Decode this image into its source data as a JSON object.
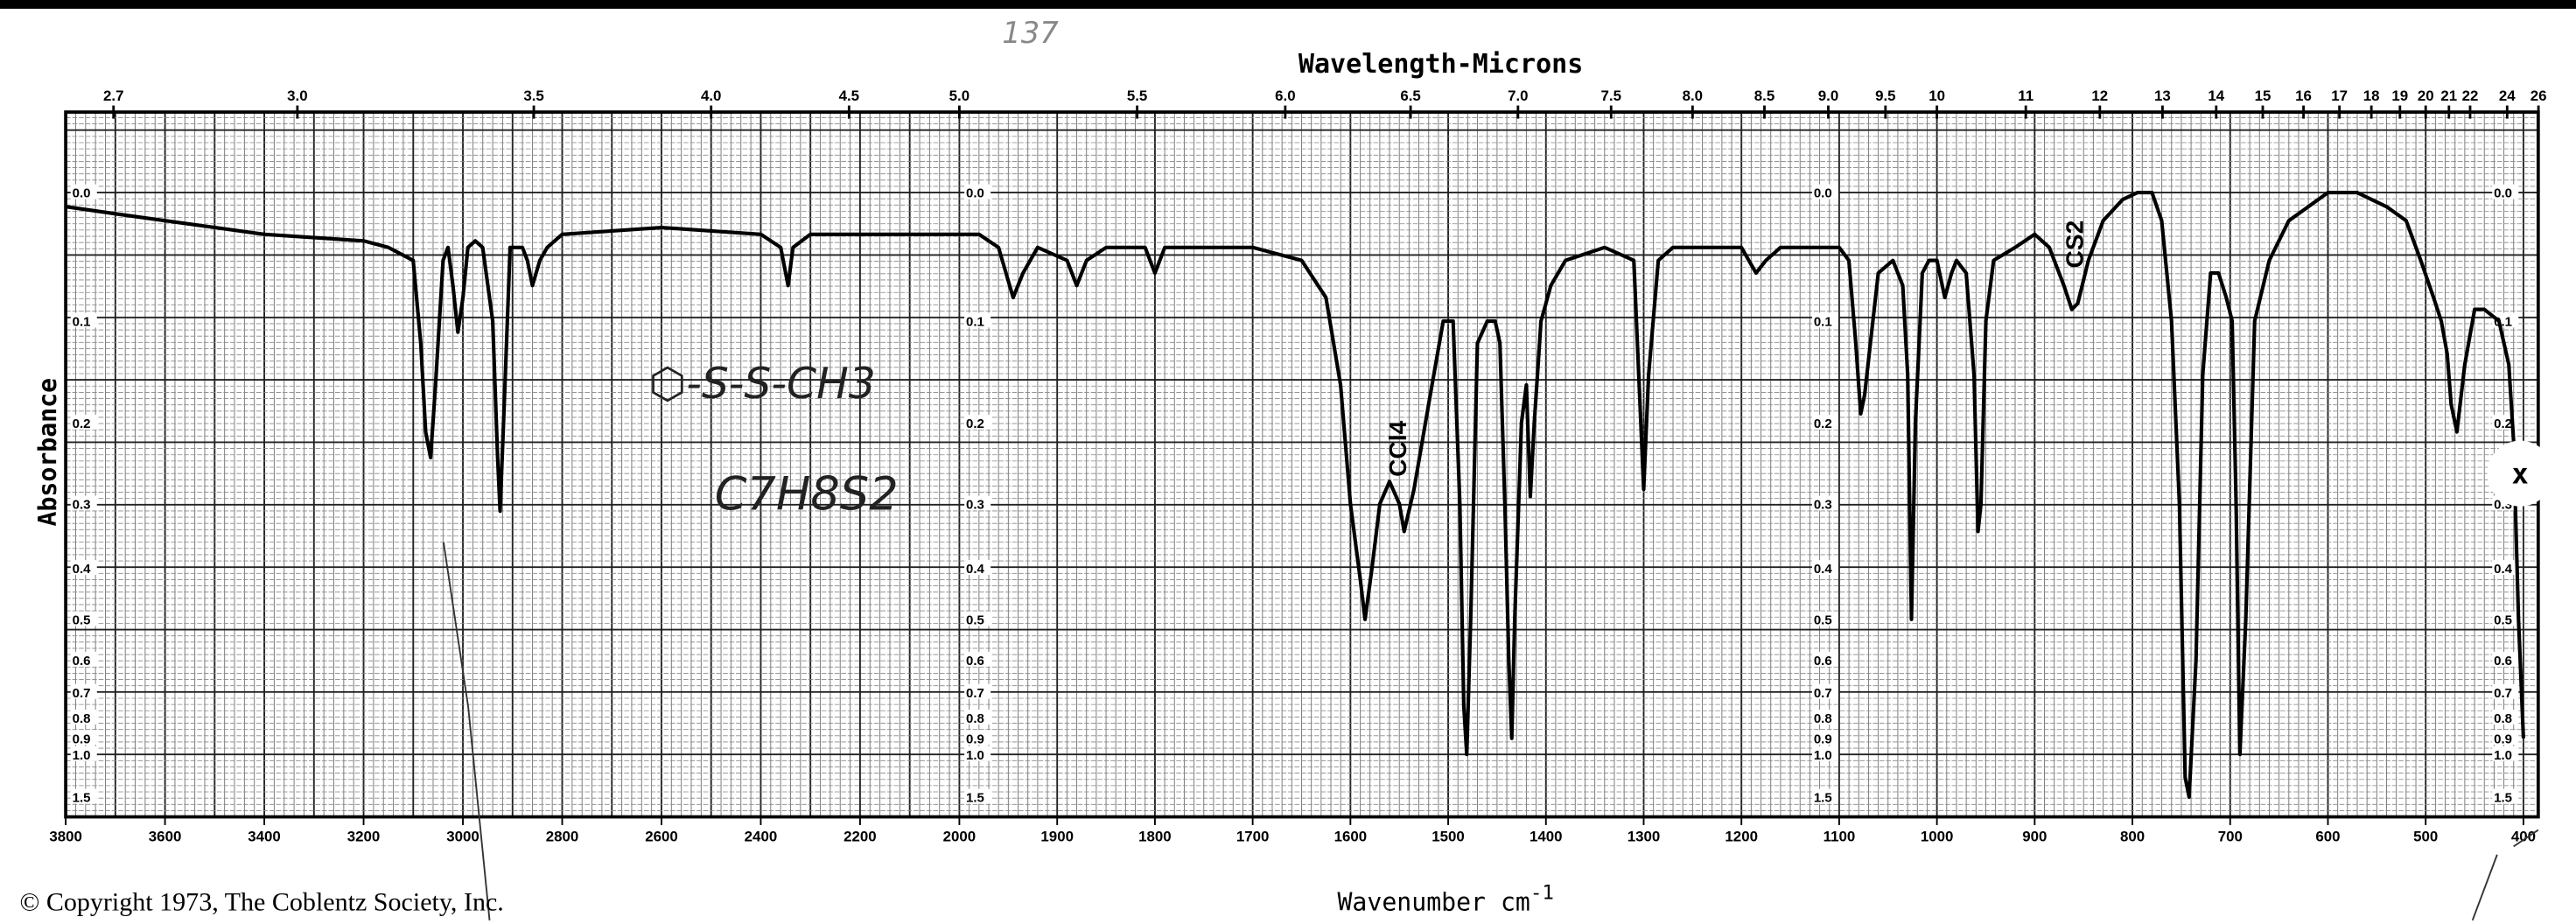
{
  "chart_data": {
    "type": "line",
    "title": "Wavelength-Microns",
    "xlabel": "Wavenumber cm",
    "xlabel_superscript": "-1",
    "ylabel": "Absorbance",
    "xlim": [
      3800,
      400
    ],
    "ylim": [
      0.0,
      1.5
    ],
    "y_scale": "log-transmittance (linear %T)",
    "grid": true,
    "x_ticks": [
      "3800",
      "3600",
      "3400",
      "3200",
      "3000",
      "2800",
      "2600",
      "2400",
      "2200",
      "2000",
      "1900",
      "1800",
      "1700",
      "1600",
      "1500",
      "1400",
      "1300",
      "1200",
      "1100",
      "1000",
      "900",
      "800",
      "700",
      "600",
      "500",
      "400"
    ],
    "top_ticks_microns": [
      "2.7",
      "3.0",
      "3.5",
      "4.0",
      "4.5",
      "5.0",
      "5.5",
      "6.0",
      "6.5",
      "7.0",
      "7.5",
      "8.0",
      "8.5",
      "9.0",
      "9.5",
      "10",
      "11",
      "12",
      "13",
      "14",
      "15",
      "16",
      "17",
      "18",
      "19",
      "20",
      "21",
      "22",
      "24",
      "26"
    ],
    "y_ticks": [
      "0.0",
      "0.1",
      "0.2",
      "0.3",
      "0.4",
      "0.5",
      "0.6",
      "0.7",
      "0.8",
      "0.9",
      "1.0",
      "1.5"
    ],
    "series": [
      {
        "name": "Spectrum",
        "x": [
          3800,
          3700,
          3600,
          3400,
          3200,
          3150,
          3100,
          3085,
          3075,
          3065,
          3055,
          3040,
          3030,
          3020,
          3010,
          3000,
          2990,
          2975,
          2960,
          2940,
          2930,
          2925,
          2918,
          2905,
          2880,
          2870,
          2860,
          2845,
          2830,
          2800,
          2600,
          2400,
          2360,
          2345,
          2335,
          2300,
          2100,
          2000,
          1980,
          1960,
          1945,
          1935,
          1920,
          1890,
          1880,
          1870,
          1850,
          1810,
          1800,
          1790,
          1760,
          1700,
          1650,
          1625,
          1610,
          1600,
          1590,
          1585,
          1578,
          1570,
          1560,
          1550,
          1545,
          1535,
          1520,
          1505,
          1495,
          1488,
          1484,
          1481,
          1477,
          1470,
          1460,
          1452,
          1447,
          1442,
          1438,
          1435,
          1432,
          1425,
          1420,
          1416,
          1412,
          1405,
          1395,
          1380,
          1340,
          1310,
          1305,
          1300,
          1295,
          1285,
          1270,
          1230,
          1200,
          1185,
          1175,
          1160,
          1120,
          1100,
          1090,
          1083,
          1078,
          1074,
          1068,
          1060,
          1045,
          1035,
          1030,
          1026,
          1022,
          1015,
          1008,
          1000,
          992,
          985,
          980,
          970,
          962,
          958,
          955,
          950,
          942,
          920,
          900,
          885,
          870,
          862,
          856,
          845,
          830,
          810,
          795,
          780,
          770,
          760,
          752,
          746,
          742,
          735,
          728,
          720,
          712,
          704,
          698,
          694,
          690,
          684,
          675,
          660,
          640,
          620,
          600,
          570,
          540,
          520,
          505,
          492,
          484,
          478,
          474,
          468,
          460,
          450,
          440,
          425,
          415,
          410,
          405,
          400
        ],
        "y": [
          0.01,
          0.015,
          0.02,
          0.03,
          0.035,
          0.04,
          0.05,
          0.12,
          0.21,
          0.24,
          0.16,
          0.05,
          0.04,
          0.07,
          0.11,
          0.08,
          0.04,
          0.035,
          0.04,
          0.1,
          0.24,
          0.31,
          0.2,
          0.04,
          0.04,
          0.05,
          0.07,
          0.05,
          0.04,
          0.03,
          0.025,
          0.03,
          0.04,
          0.07,
          0.04,
          0.03,
          0.03,
          0.03,
          0.03,
          0.04,
          0.08,
          0.06,
          0.04,
          0.05,
          0.07,
          0.05,
          0.04,
          0.04,
          0.06,
          0.04,
          0.04,
          0.04,
          0.05,
          0.08,
          0.16,
          0.3,
          0.42,
          0.5,
          0.4,
          0.3,
          0.27,
          0.3,
          0.34,
          0.28,
          0.18,
          0.1,
          0.1,
          0.3,
          0.75,
          1.0,
          0.5,
          0.12,
          0.1,
          0.1,
          0.12,
          0.3,
          0.6,
          0.9,
          0.5,
          0.2,
          0.16,
          0.29,
          0.2,
          0.1,
          0.07,
          0.05,
          0.04,
          0.05,
          0.15,
          0.28,
          0.15,
          0.05,
          0.04,
          0.04,
          0.04,
          0.06,
          0.05,
          0.04,
          0.04,
          0.04,
          0.05,
          0.12,
          0.19,
          0.17,
          0.12,
          0.06,
          0.05,
          0.07,
          0.15,
          0.5,
          0.2,
          0.06,
          0.05,
          0.05,
          0.08,
          0.06,
          0.05,
          0.06,
          0.15,
          0.34,
          0.3,
          0.1,
          0.05,
          0.04,
          0.03,
          0.04,
          0.07,
          0.09,
          0.085,
          0.05,
          0.02,
          0.005,
          0.0,
          0.0,
          0.02,
          0.1,
          0.3,
          1.2,
          1.5,
          0.6,
          0.15,
          0.06,
          0.06,
          0.08,
          0.1,
          0.3,
          1.0,
          0.5,
          0.1,
          0.05,
          0.02,
          0.01,
          0.0,
          0.0,
          0.01,
          0.02,
          0.05,
          0.08,
          0.1,
          0.13,
          0.18,
          0.21,
          0.14,
          0.09,
          0.09,
          0.1,
          0.14,
          0.22,
          0.5,
          0.9
        ]
      }
    ],
    "annotations": [
      "CCl4",
      "CS2"
    ]
  },
  "handwriting": {
    "structure": "⬡-S-S-CH3",
    "formula": "C7H8S2",
    "scribble": "137"
  },
  "close_marker": "x",
  "copyright": "© Copyright 1973, The Coblentz Society, Inc."
}
